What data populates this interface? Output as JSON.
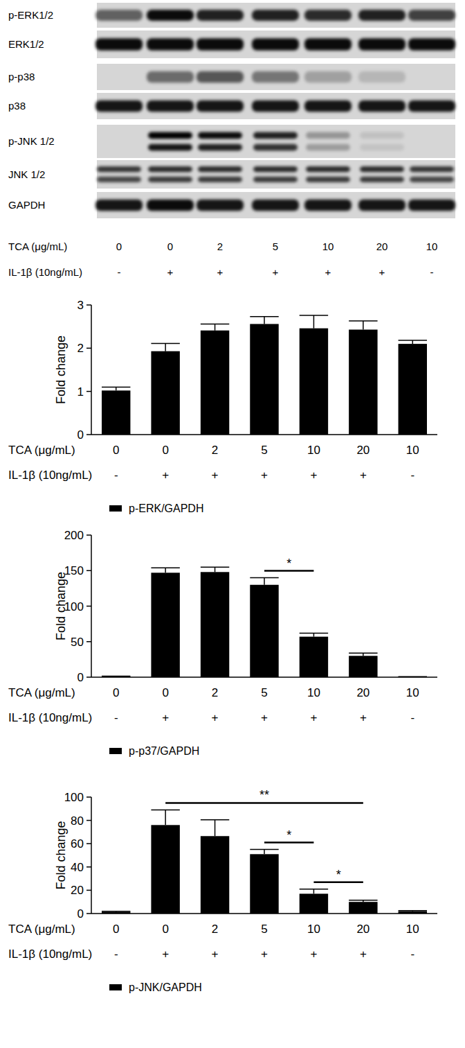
{
  "blot": {
    "rows": [
      {
        "label": "p-ERK1/2",
        "bands": 1,
        "signal": [
          0.55,
          0.95,
          0.85,
          0.85,
          0.8,
          0.85,
          0.7
        ]
      },
      {
        "label": "ERK1/2",
        "bands": 1,
        "signal": [
          0.95,
          0.95,
          0.95,
          0.95,
          0.95,
          0.95,
          0.95
        ]
      },
      {
        "label": "p-p38",
        "bands": 1,
        "signal": [
          0,
          0.5,
          0.6,
          0.45,
          0.25,
          0.15,
          0
        ]
      },
      {
        "label": "p38",
        "bands": 1,
        "signal": [
          0.9,
          0.9,
          0.9,
          0.9,
          0.9,
          0.9,
          0.9
        ]
      },
      {
        "label": "p-JNK 1/2",
        "bands": 2,
        "signal": [
          0,
          1,
          0.95,
          0.85,
          0.3,
          0.1,
          0
        ]
      },
      {
        "label": "JNK 1/2",
        "bands": 2,
        "signal": [
          0.75,
          0.8,
          0.8,
          0.8,
          0.8,
          0.8,
          0.75
        ]
      },
      {
        "label": "GAPDH",
        "bands": 1,
        "signal": [
          0.9,
          0.95,
          0.9,
          0.9,
          0.9,
          0.9,
          0.9
        ]
      }
    ],
    "lanes": {
      "tca_label": "TCA (μg/mL)",
      "tca": [
        0,
        0,
        2,
        5,
        10,
        20,
        10
      ],
      "il_label": "IL-1β (10ng/mL)",
      "il": [
        "-",
        "+",
        "+",
        "+",
        "+",
        "+",
        "-"
      ]
    }
  },
  "chart_data": [
    {
      "type": "bar",
      "y_label": "Fold change",
      "categories_label": "TCA (μg/mL)",
      "categories": [
        "0",
        "0",
        "2",
        "5",
        "10",
        "20",
        "10"
      ],
      "second_row_label": "IL-1β (10ng/mL)",
      "second_row": [
        "-",
        "+",
        "+",
        "+",
        "+",
        "+",
        "-"
      ],
      "series": [
        {
          "name": "p-ERK/GAPDH",
          "color": "#000000",
          "values": [
            1.02,
            1.93,
            2.41,
            2.56,
            2.46,
            2.43,
            2.1
          ],
          "errors": [
            0.08,
            0.18,
            0.15,
            0.17,
            0.3,
            0.2,
            0.08
          ]
        }
      ],
      "ylim": [
        0,
        3
      ],
      "yticks": [
        0,
        1,
        2,
        3
      ],
      "legend": "bottom-left",
      "annotations": []
    },
    {
      "type": "bar",
      "y_label": "Fold change",
      "categories_label": "TCA (μg/mL)",
      "categories": [
        "0",
        "0",
        "2",
        "5",
        "10",
        "20",
        "10"
      ],
      "second_row_label": "IL-1β (10ng/mL)",
      "second_row": [
        "-",
        "+",
        "+",
        "+",
        "+",
        "+",
        "-"
      ],
      "series": [
        {
          "name": "p-p37/GAPDH",
          "color": "#000000",
          "values": [
            1,
            147,
            148,
            130,
            57,
            30,
            0.5
          ],
          "errors": [
            0.5,
            7,
            7,
            10,
            5,
            4,
            0.3
          ]
        }
      ],
      "ylim": [
        0,
        200
      ],
      "yticks": [
        0,
        50,
        100,
        150,
        200
      ],
      "legend": "bottom-left",
      "annotations": [
        {
          "text": "*",
          "from": 3,
          "to": 4
        }
      ]
    },
    {
      "type": "bar",
      "y_label": "Fold change",
      "categories_label": "TCA (μg/mL)",
      "categories": [
        "0",
        "0",
        "2",
        "5",
        "10",
        "20",
        "10"
      ],
      "second_row_label": "IL-1β (10ng/mL)",
      "second_row": [
        "-",
        "+",
        "+",
        "+",
        "+",
        "+",
        "-"
      ],
      "series": [
        {
          "name": "p-JNK/GAPDH",
          "color": "#000000",
          "values": [
            1.5,
            76,
            66.5,
            51,
            17,
            10,
            2
          ],
          "errors": [
            0.5,
            13,
            14,
            4,
            4,
            1.5,
            0.5
          ]
        }
      ],
      "ylim": [
        0,
        100
      ],
      "yticks": [
        0,
        20,
        40,
        60,
        80,
        100
      ],
      "legend": "bottom-left",
      "annotations": [
        {
          "text": "**",
          "from": 1,
          "to": 5
        },
        {
          "text": "*",
          "from": 3,
          "to": 4
        },
        {
          "text": "*",
          "from": 4,
          "to": 5
        }
      ]
    }
  ]
}
